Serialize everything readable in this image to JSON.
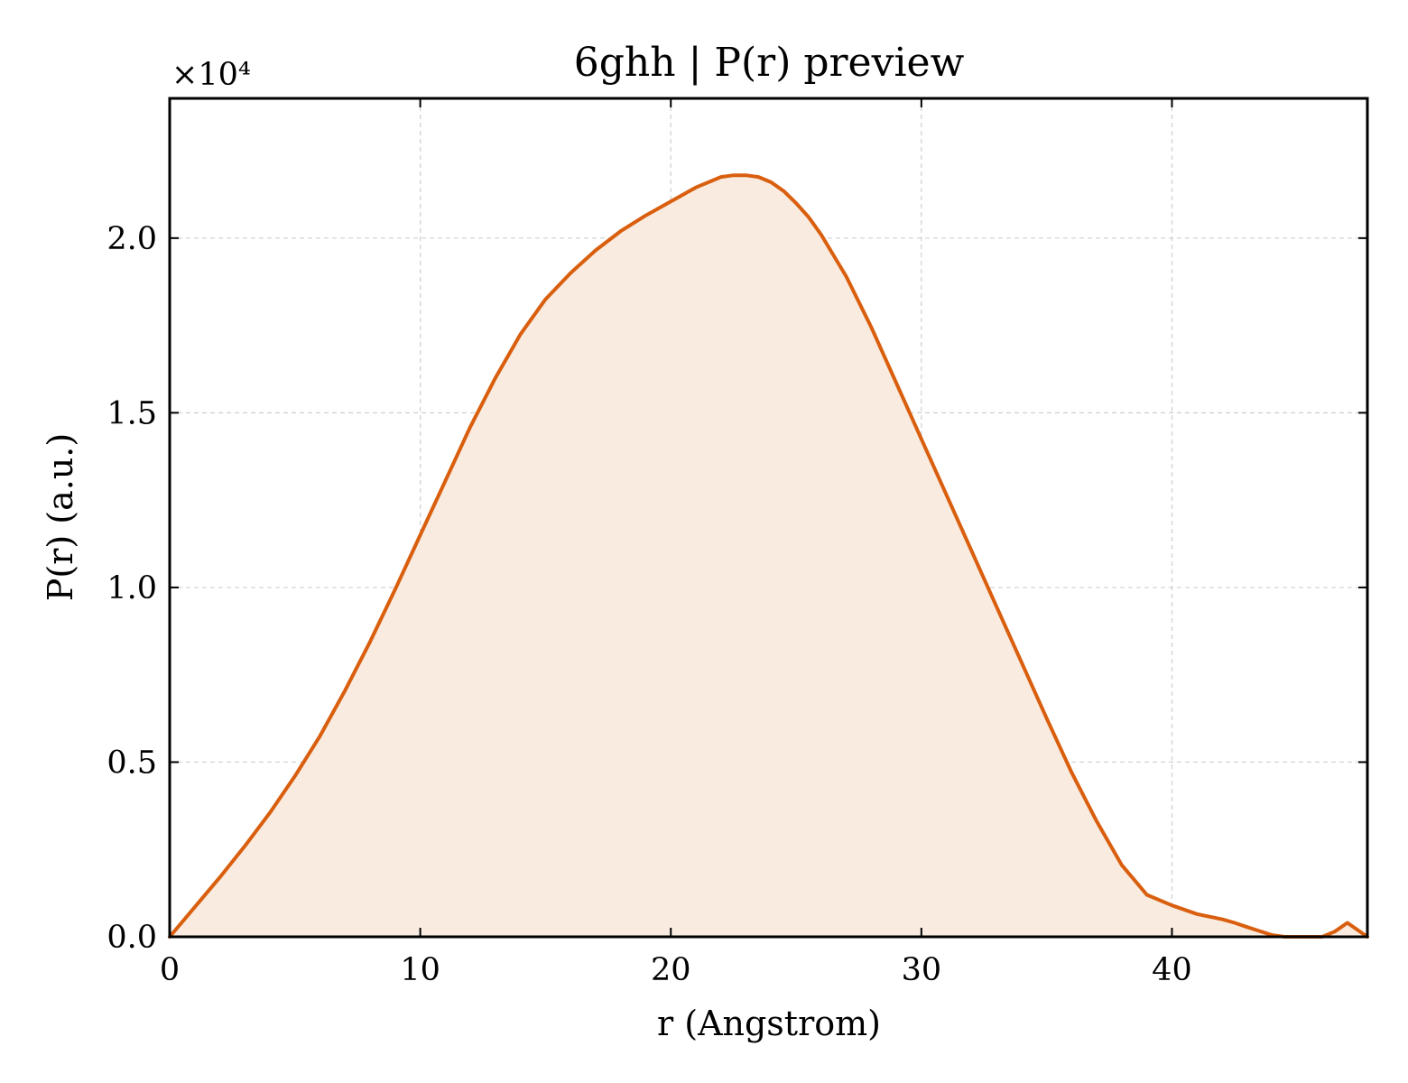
{
  "chart_data": {
    "type": "area",
    "title": "6ghh | P(r) preview",
    "xlabel": "r (Angstrom)",
    "ylabel": "P(r) (a.u.)",
    "y_offset_label": "×10⁴",
    "y_scale_factor": 10000,
    "xlim": [
      0,
      47.8
    ],
    "ylim": [
      0,
      24000
    ],
    "xticks": [
      0,
      10,
      20,
      30,
      40
    ],
    "xtick_labels": [
      "0",
      "10",
      "20",
      "30",
      "40"
    ],
    "yticks": [
      0,
      5000,
      10000,
      15000,
      20000
    ],
    "ytick_labels": [
      "0.0",
      "0.5",
      "1.0",
      "1.5",
      "2.0"
    ],
    "grid": true,
    "colors": {
      "line": "#d95f0e",
      "fill": "#f9ebe0"
    },
    "series": [
      {
        "x": [
          0,
          1,
          2,
          3,
          4,
          5,
          6,
          7,
          8,
          9,
          10,
          11,
          12,
          13,
          14,
          15,
          16,
          17,
          18,
          19,
          20,
          21,
          22,
          22.5,
          23,
          23.5,
          24,
          24.5,
          25,
          25.5,
          26,
          27,
          28,
          29,
          30,
          31,
          32,
          33,
          34,
          35,
          36,
          37,
          38,
          39,
          40,
          41,
          42,
          42.5,
          43,
          44,
          44.5,
          45,
          46,
          46.5,
          47,
          47.8
        ],
        "y": [
          0,
          850,
          1700,
          2600,
          3550,
          4600,
          5750,
          7050,
          8450,
          9950,
          11500,
          13050,
          14600,
          16000,
          17250,
          18250,
          19000,
          19650,
          20200,
          20650,
          21050,
          21450,
          21750,
          21800,
          21800,
          21750,
          21600,
          21350,
          21000,
          20600,
          20100,
          18900,
          17450,
          15850,
          14250,
          12650,
          11050,
          9450,
          7850,
          6250,
          4700,
          3300,
          2050,
          1200,
          900,
          650,
          500,
          400,
          280,
          50,
          0,
          0,
          0,
          150,
          400,
          0
        ]
      }
    ]
  }
}
